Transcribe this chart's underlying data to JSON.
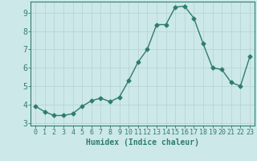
{
  "x": [
    0,
    1,
    2,
    3,
    4,
    5,
    6,
    7,
    8,
    9,
    10,
    11,
    12,
    13,
    14,
    15,
    16,
    17,
    18,
    19,
    20,
    21,
    22,
    23
  ],
  "y": [
    3.9,
    3.6,
    3.4,
    3.4,
    3.5,
    3.9,
    4.2,
    4.35,
    4.15,
    4.4,
    5.3,
    6.3,
    7.0,
    8.35,
    8.35,
    9.3,
    9.35,
    8.7,
    7.3,
    6.0,
    5.9,
    5.2,
    5.0,
    6.6
  ],
  "line_color": "#2e7d6e",
  "marker": "D",
  "marker_size": 2.5,
  "bg_color": "#cde8e8",
  "grid_color": "#b8d4d4",
  "xlabel": "Humidex (Indice chaleur)",
  "xlim": [
    -0.5,
    23.5
  ],
  "ylim": [
    2.85,
    9.6
  ],
  "yticks": [
    3,
    4,
    5,
    6,
    7,
    8,
    9
  ],
  "xticks": [
    0,
    1,
    2,
    3,
    4,
    5,
    6,
    7,
    8,
    9,
    10,
    11,
    12,
    13,
    14,
    15,
    16,
    17,
    18,
    19,
    20,
    21,
    22,
    23
  ],
  "axis_color": "#2e7d6e",
  "tick_label_color": "#2e7d6e",
  "xlabel_color": "#2e7d6e",
  "xlabel_fontsize": 7,
  "tick_fontsize": 6,
  "ytick_fontsize": 7,
  "linewidth": 1.0
}
